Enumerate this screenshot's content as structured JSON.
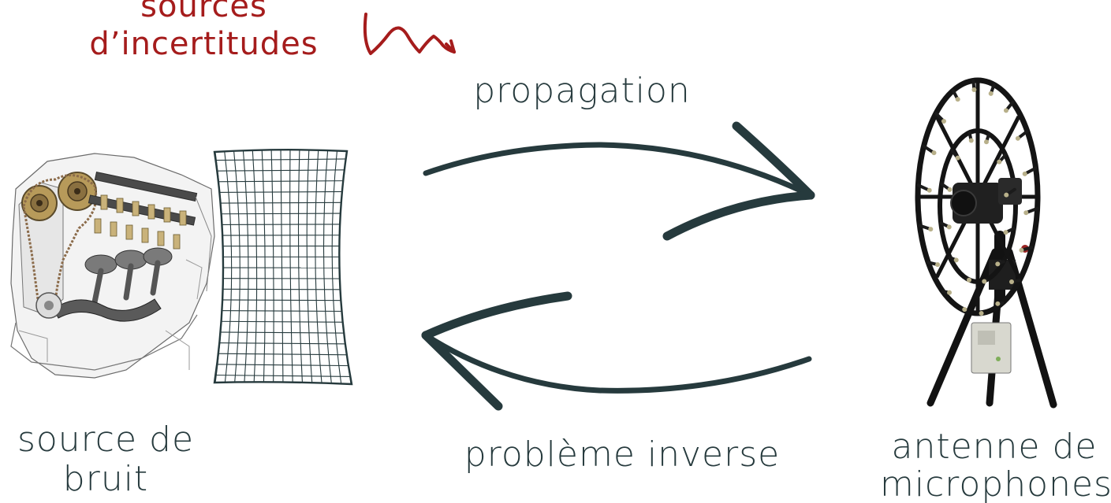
{
  "uncertainty": {
    "line1": "sources",
    "line2": "d’incertitudes",
    "color": "#a51c1c",
    "icon": "squiggle-arrow-icon"
  },
  "arrows": {
    "top_label": "propagation",
    "bottom_label": "problème inverse",
    "color": "#263a3d"
  },
  "source": {
    "line1": "source de",
    "line2": "bruit",
    "image": "engine-illustration",
    "mesh": "surface-mesh-grid"
  },
  "antenna": {
    "line1": "antenne de",
    "line2": "microphones",
    "image": "microphone-array-photo"
  },
  "colors": {
    "text": "#263a3d",
    "accent": "#a51c1c"
  }
}
